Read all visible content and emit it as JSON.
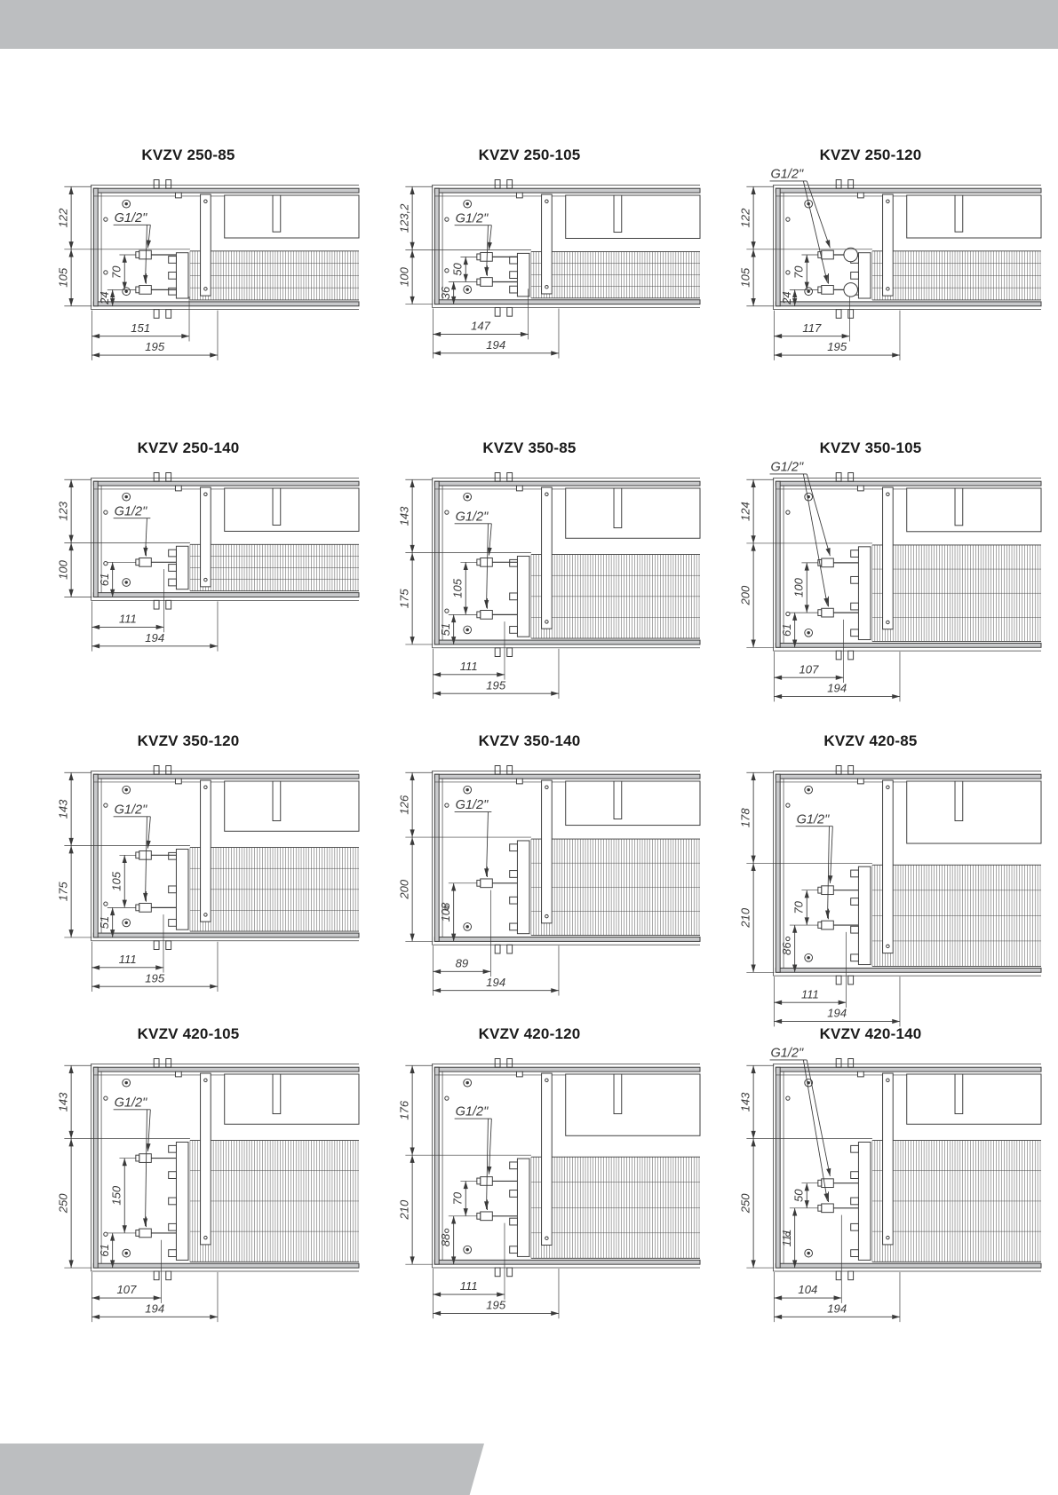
{
  "page": {
    "background": "#ffffff",
    "header_bar_color": "#bcbec0",
    "footer_bar_color": "#bcbec0",
    "line_color": "#3a3a3a",
    "rail_fill": "#c9cacc"
  },
  "drawings": [
    {
      "model": "KVZV 250-85",
      "connection_label": "G1/2\"",
      "connection_label_position": "inner",
      "valve_count": 2,
      "valve_style": "standard",
      "dim_upper_height": "122",
      "dim_lower_height": "105",
      "dim_valve_spacing": "70",
      "dim_valve_to_bottom": "24",
      "dim_bottom_inner": "151",
      "dim_bottom_outer": "195"
    },
    {
      "model": "KVZV 250-105",
      "connection_label": "G1/2\"",
      "connection_label_position": "inner",
      "valve_count": 2,
      "valve_style": "standard",
      "dim_upper_height": "123,2",
      "dim_lower_height": "100",
      "dim_valve_spacing": "50",
      "dim_valve_to_bottom": "36",
      "dim_bottom_inner": "147",
      "dim_bottom_outer": "194"
    },
    {
      "model": "KVZV 250-120",
      "connection_label": "G1/2\"",
      "connection_label_position": "top",
      "valve_count": 2,
      "valve_style": "ball",
      "dim_upper_height": "122",
      "dim_lower_height": "105",
      "dim_valve_spacing": "70",
      "dim_valve_to_bottom": "24",
      "dim_bottom_inner": "117",
      "dim_bottom_outer": "195"
    },
    {
      "model": "KVZV 250-140",
      "connection_label": "G1/2\"",
      "connection_label_position": "inner",
      "valve_count": 1,
      "valve_style": "standard",
      "dim_upper_height": "123",
      "dim_lower_height": "100",
      "dim_valve_spacing": null,
      "dim_valve_to_bottom": "61",
      "dim_bottom_inner": "111",
      "dim_bottom_outer": "194"
    },
    {
      "model": "KVZV 350-85",
      "connection_label": "G1/2\"",
      "connection_label_position": "inner",
      "valve_count": 2,
      "valve_style": "standard",
      "dim_upper_height": "143",
      "dim_lower_height": "175",
      "dim_valve_spacing": "105",
      "dim_valve_to_bottom": "51",
      "dim_bottom_inner": "111",
      "dim_bottom_outer": "195"
    },
    {
      "model": "KVZV 350-105",
      "connection_label": "G1/2\"",
      "connection_label_position": "top",
      "valve_count": 2,
      "valve_style": "standard",
      "dim_upper_height": "124",
      "dim_lower_height": "200",
      "dim_valve_spacing": "100",
      "dim_valve_to_bottom": "61",
      "dim_bottom_inner": "107",
      "dim_bottom_outer": "194"
    },
    {
      "model": "KVZV 350-120",
      "connection_label": "G1/2\"",
      "connection_label_position": "inner",
      "valve_count": 2,
      "valve_style": "standard",
      "dim_upper_height": "143",
      "dim_lower_height": "175",
      "dim_valve_spacing": "105",
      "dim_valve_to_bottom": "51",
      "dim_bottom_inner": "111",
      "dim_bottom_outer": "195"
    },
    {
      "model": "KVZV 350-140",
      "connection_label": "G1/2\"",
      "connection_label_position": "inner",
      "valve_count": 1,
      "valve_style": "standard",
      "dim_upper_height": "126",
      "dim_lower_height": "200",
      "dim_valve_spacing": null,
      "dim_valve_to_bottom": "108",
      "dim_bottom_inner": "89",
      "dim_bottom_outer": "194"
    },
    {
      "model": "KVZV 420-85",
      "connection_label": "G1/2\"",
      "connection_label_position": "inner",
      "valve_count": 2,
      "valve_style": "standard",
      "dim_upper_height": "178",
      "dim_lower_height": "210",
      "dim_valve_spacing": "70",
      "dim_valve_to_bottom": "86",
      "dim_bottom_inner": "111",
      "dim_bottom_outer": "194"
    },
    {
      "model": "KVZV 420-105",
      "connection_label": "G1/2\"",
      "connection_label_position": "inner",
      "valve_count": 2,
      "valve_style": "standard",
      "dim_upper_height": "143",
      "dim_lower_height": "250",
      "dim_valve_spacing": "150",
      "dim_valve_to_bottom": "61",
      "dim_bottom_inner": "107",
      "dim_bottom_outer": "194"
    },
    {
      "model": "KVZV 420-120",
      "connection_label": "G1/2\"",
      "connection_label_position": "inner",
      "valve_count": 2,
      "valve_style": "standard",
      "dim_upper_height": "176",
      "dim_lower_height": "210",
      "dim_valve_spacing": "70",
      "dim_valve_to_bottom": "88",
      "dim_bottom_inner": "111",
      "dim_bottom_outer": "195"
    },
    {
      "model": "KVZV 420-140",
      "connection_label": "G1/2\"",
      "connection_label_position": "top",
      "valve_count": 2,
      "valve_style": "standard",
      "dim_upper_height": "143",
      "dim_lower_height": "250",
      "dim_valve_spacing": "50",
      "dim_valve_to_bottom": "111",
      "dim_bottom_inner": "104",
      "dim_bottom_outer": "194"
    }
  ]
}
